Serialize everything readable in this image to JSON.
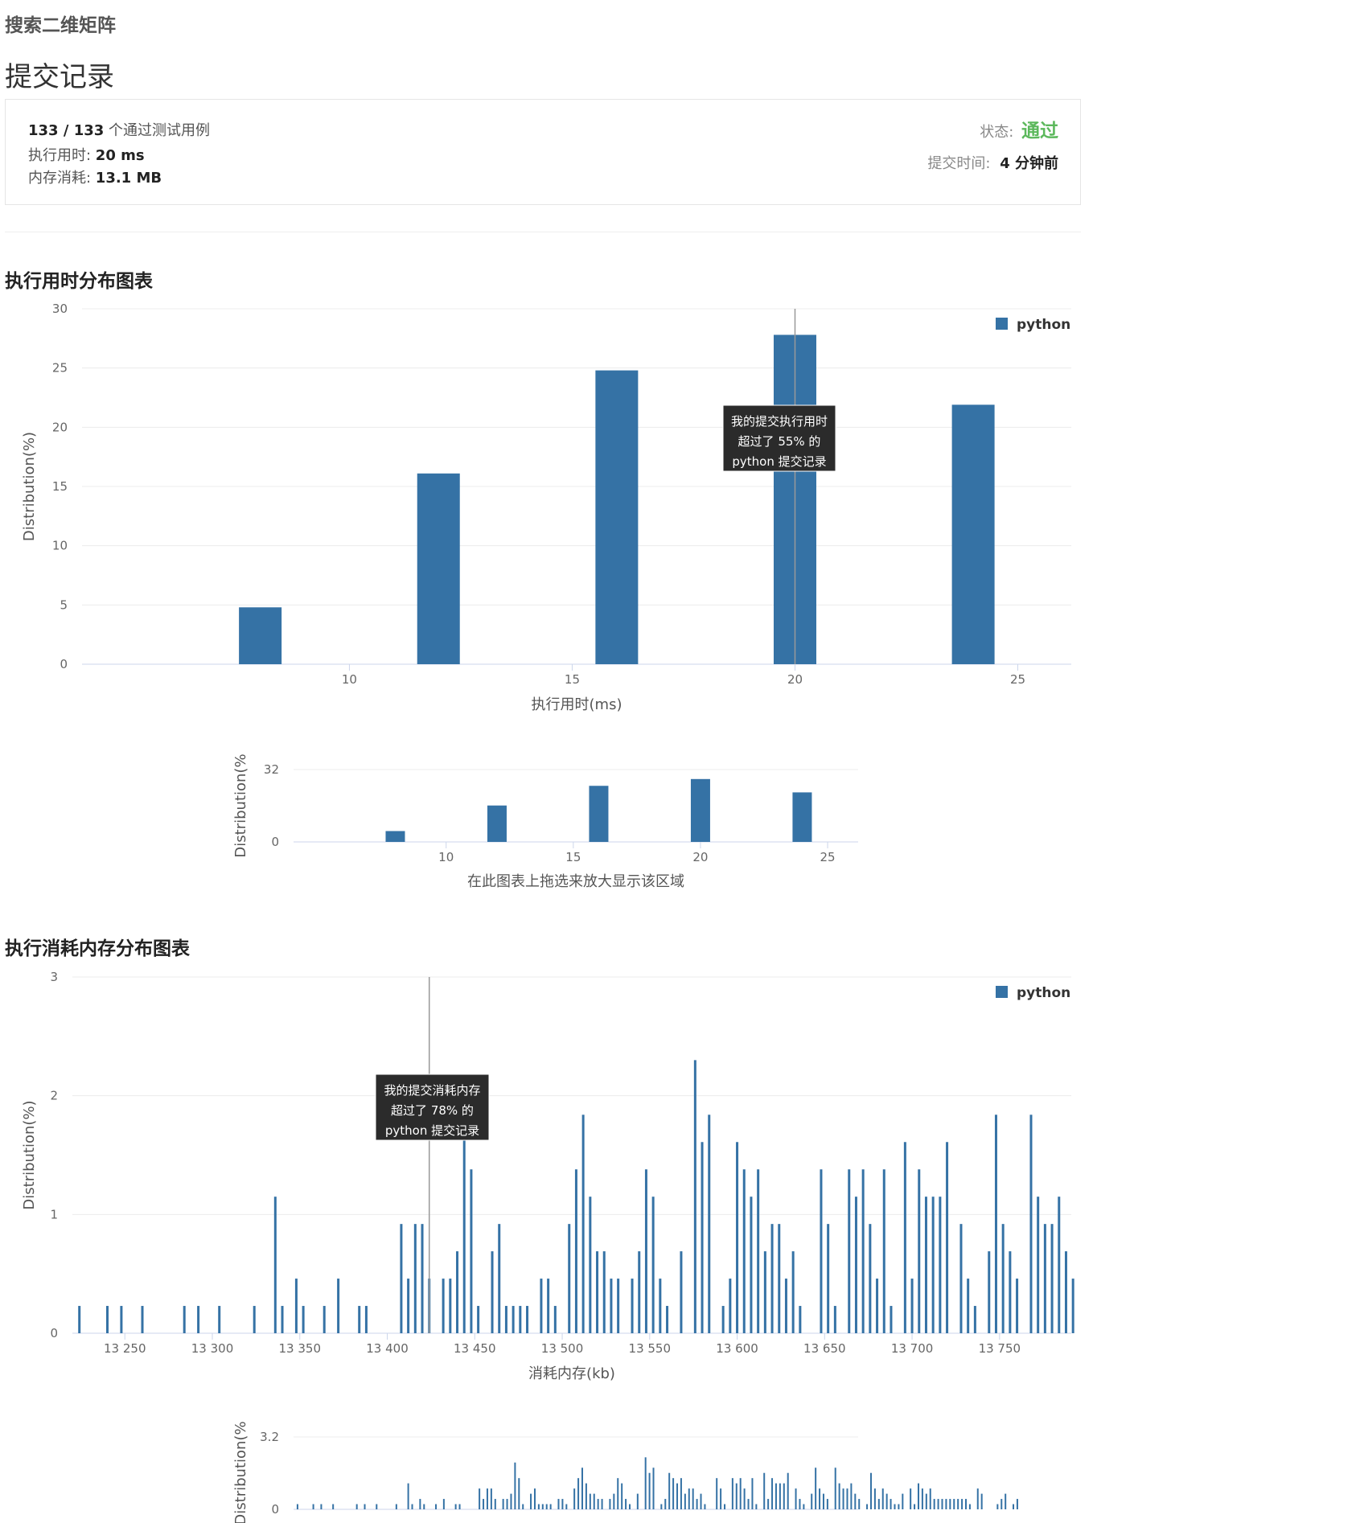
{
  "problem_title": "搜索二维矩阵",
  "section_title": "提交记录",
  "result": {
    "passed": "133",
    "total": "133",
    "passed_sep": " / ",
    "passed_suffix": "个通过测试用例",
    "runtime_label": "执行用时: ",
    "runtime_value": "20 ms",
    "memory_label": "内存消耗: ",
    "memory_value": "13.1 MB",
    "status_label": "状态: ",
    "status_value": "通过",
    "time_label": "提交时间: ",
    "time_value": "4 分钟前"
  },
  "colors": {
    "bar": "#3572a5",
    "pass": "#5cb85c",
    "tooltip_bg": "#2b2b2b"
  },
  "runtime_chart": {
    "heading": "执行用时分布图表",
    "zoom_hint": "在此图表上拖选来放大显示该区域",
    "tooltip": [
      "我的提交执行用时",
      "超过了 55% 的",
      "python 提交记录"
    ],
    "chart_data": {
      "type": "bar",
      "title": "",
      "xlabel": "执行用时(ms)",
      "ylabel": "Distribution(%)",
      "x": [
        8,
        12,
        16,
        20,
        24
      ],
      "series": [
        {
          "name": "python",
          "values": [
            4.8,
            16.1,
            24.8,
            27.8,
            21.9
          ]
        }
      ],
      "xlim": [
        4,
        26.2
      ],
      "ylim": [
        0,
        30
      ],
      "xticks": [
        10,
        15,
        20,
        25
      ],
      "yticks": [
        0,
        5,
        10,
        15,
        20,
        25,
        30
      ],
      "marker_x": 20,
      "legend": "top-right",
      "navigator": {
        "ylabel": "Distribution(%",
        "yticks": [
          0,
          32
        ],
        "xticks": [
          10,
          15,
          20,
          25
        ]
      }
    }
  },
  "memory_chart": {
    "heading": "执行消耗内存分布图表",
    "tooltip": [
      "我的提交消耗内存",
      "超过了 78% 的",
      "python 提交记录"
    ],
    "chart_data": {
      "type": "bar",
      "title": "",
      "xlabel": "消耗内存(kb)",
      "ylabel": "Distribution(%)",
      "x_start": 13224,
      "x_step": 4,
      "series": [
        {
          "name": "python",
          "values": [
            0.23,
            0,
            0,
            0,
            0.23,
            0,
            0.23,
            0,
            0,
            0.23,
            0,
            0,
            0,
            0,
            0,
            0.23,
            0,
            0.23,
            0,
            0,
            0.23,
            0,
            0,
            0,
            0,
            0.23,
            0,
            0,
            1.15,
            0.23,
            0,
            0.46,
            0.23,
            0,
            0,
            0.23,
            0,
            0.46,
            0,
            0,
            0.23,
            0.23,
            0,
            0,
            0,
            0,
            0.92,
            0.46,
            0.92,
            0.92,
            0.46,
            0,
            0.46,
            0.46,
            0.69,
            2.07,
            1.38,
            0.23,
            0,
            0.69,
            0.92,
            0.23,
            0.23,
            0.23,
            0.23,
            0,
            0.46,
            0.46,
            0.23,
            0,
            0.92,
            1.38,
            1.84,
            1.15,
            0.69,
            0.69,
            0.46,
            0.46,
            0,
            0.46,
            0.69,
            1.38,
            1.15,
            0.46,
            0.23,
            0,
            0.69,
            0,
            2.3,
            1.61,
            1.84,
            0,
            0.23,
            0.46,
            1.61,
            1.38,
            1.15,
            1.38,
            0.69,
            0.92,
            0.92,
            0.46,
            0.69,
            0.23,
            0,
            0,
            1.38,
            0.92,
            0.23,
            0,
            1.38,
            1.15,
            1.38,
            0.92,
            0.46,
            1.38,
            0.23,
            0,
            1.61,
            0.46,
            1.38,
            1.15,
            1.15,
            1.15,
            1.61,
            0,
            0.92,
            0.46,
            0.23,
            0,
            0.69,
            1.84,
            0.92,
            0.69,
            0.46,
            0,
            1.84,
            1.15,
            0.92,
            0.92,
            1.15,
            0.69,
            0.46,
            0,
            0.23,
            1.61,
            0.92,
            0.46,
            0.92,
            0.69,
            0.46,
            0.23,
            0.23,
            0.69,
            0,
            0.92,
            0.23,
            1.15,
            0.92,
            0.69,
            0.92,
            0.46,
            0.46,
            0.46,
            0.46,
            0.46,
            0.46,
            0.46,
            0.46,
            0.46,
            0.23,
            0,
            0.92,
            0.69,
            0,
            0,
            0,
            0.23,
            0.46,
            0.69,
            0,
            0.23,
            0.46
          ]
        }
      ],
      "xlim": [
        13220,
        13791
      ],
      "ylim": [
        0,
        3
      ],
      "xticks": [
        13250,
        13300,
        13350,
        13400,
        13450,
        13500,
        13550,
        13600,
        13650,
        13700,
        13750
      ],
      "xtick_labels": [
        "13 250",
        "13 300",
        "13 350",
        "13 400",
        "13 450",
        "13 500",
        "13 550",
        "13 600",
        "13 650",
        "13 700",
        "13 750"
      ],
      "yticks": [
        0,
        1,
        2,
        3
      ],
      "marker_x": 13424,
      "legend": "top-right",
      "navigator": {
        "ylabel": "Distribution(%",
        "yticks": [
          0,
          3.2
        ]
      }
    }
  }
}
